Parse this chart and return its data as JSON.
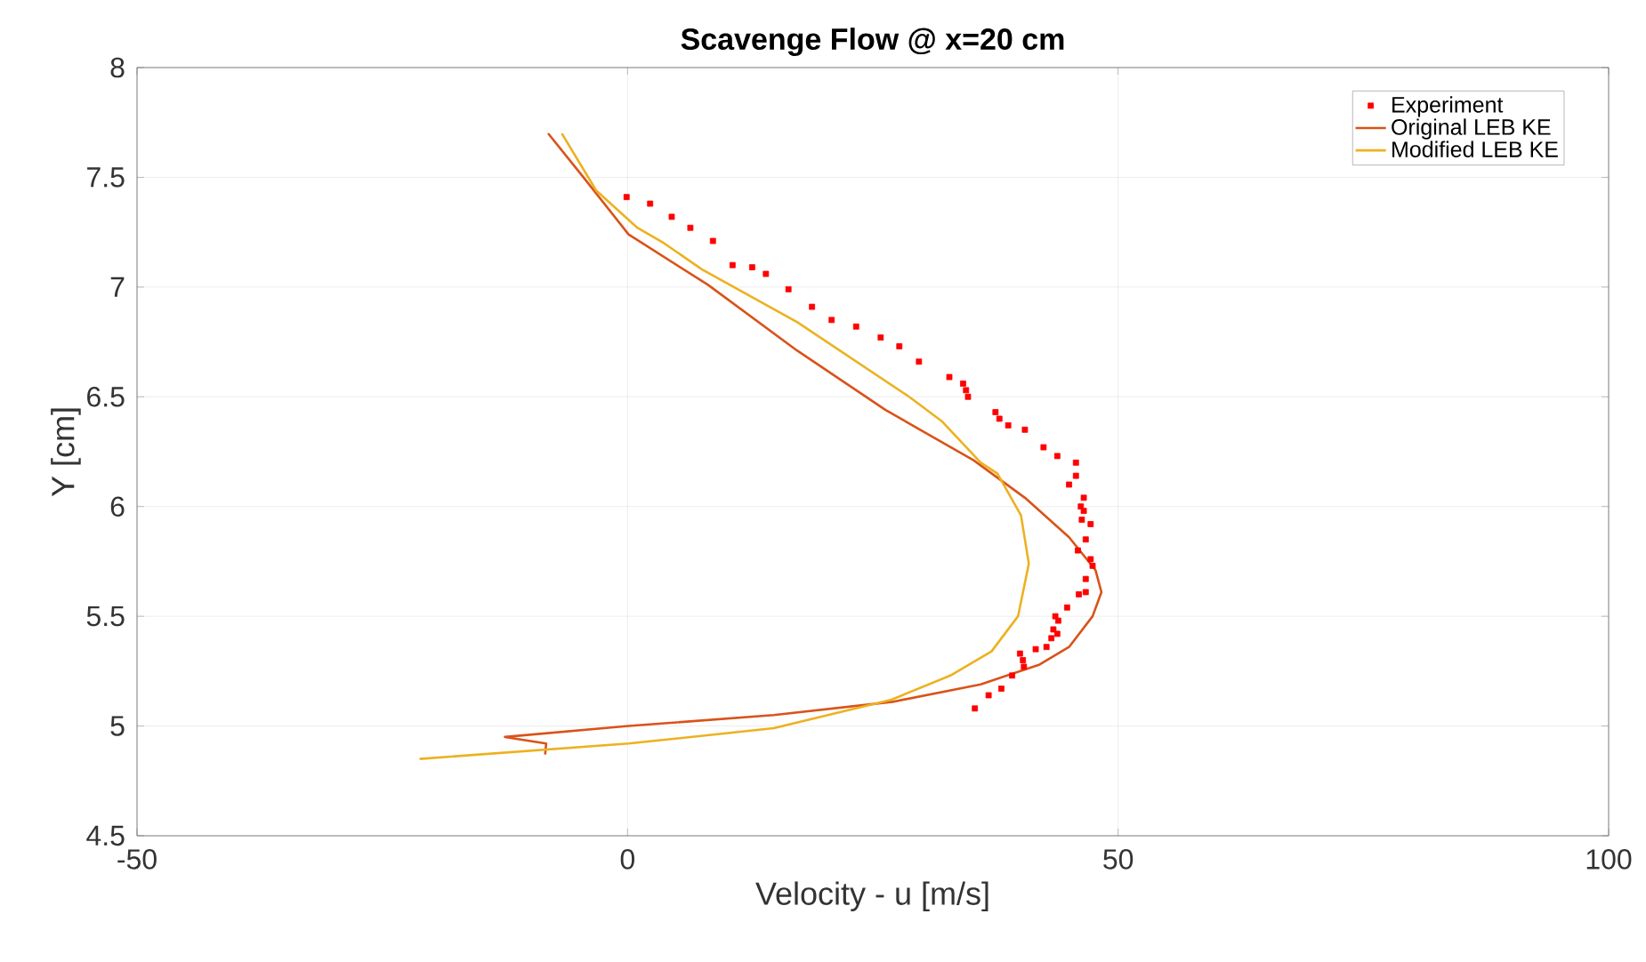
{
  "chart_data": {
    "type": "line",
    "title": "Scavenge Flow @ x=20 cm",
    "xlabel": "Velocity - u [m/s]",
    "ylabel": "Y [cm]",
    "xlim": [
      -50,
      100
    ],
    "xticks": [
      -50,
      0,
      50,
      100
    ],
    "ylim": [
      4.5,
      8
    ],
    "yticks": [
      4.5,
      5,
      5.5,
      6,
      6.5,
      7,
      7.5,
      8
    ],
    "grid": true,
    "legend": "top right",
    "series": [
      {
        "name": "Experiment",
        "type": "scatter",
        "marker": "square",
        "color": "#ff0000",
        "x": [
          -0.1,
          2.3,
          4.5,
          6.4,
          8.7,
          10.7,
          12.7,
          14.1,
          16.4,
          18.8,
          20.8,
          23.3,
          25.8,
          27.7,
          29.7,
          32.8,
          34.2,
          34.5,
          34.7,
          37.5,
          37.9,
          38.8,
          40.5,
          42.4,
          43.8,
          45.7,
          45.7,
          45.0,
          46.5,
          46.2,
          46.5,
          46.3,
          47.2,
          46.7,
          45.9,
          47.2,
          47.4,
          46.7,
          46.7,
          46.0,
          44.8,
          43.6,
          43.9,
          43.4,
          43.8,
          43.2,
          42.7,
          41.6,
          40.0,
          40.3,
          40.4,
          39.2,
          38.1,
          36.8,
          35.4
        ],
        "values": [
          7.41,
          7.38,
          7.32,
          7.27,
          7.21,
          7.1,
          7.09,
          7.06,
          6.99,
          6.91,
          6.85,
          6.82,
          6.77,
          6.73,
          6.66,
          6.59,
          6.56,
          6.53,
          6.5,
          6.43,
          6.4,
          6.37,
          6.35,
          6.27,
          6.23,
          6.2,
          6.14,
          6.1,
          6.04,
          6.0,
          5.98,
          5.94,
          5.92,
          5.85,
          5.8,
          5.76,
          5.73,
          5.67,
          5.61,
          5.6,
          5.54,
          5.5,
          5.48,
          5.44,
          5.42,
          5.4,
          5.36,
          5.35,
          5.33,
          5.3,
          5.27,
          5.23,
          5.17,
          5.14,
          5.08
        ]
      },
      {
        "name": "Original LEB KE",
        "color": "#d95319",
        "x": [
          -8.1,
          -4.5,
          0.1,
          8.2,
          17.3,
          26.3,
          35.3,
          40.5,
          45.0,
          47.7,
          48.3,
          47.4,
          45.0,
          42.0,
          36.0,
          27.0,
          14.9,
          0.1,
          -12.5,
          -8.3,
          -8.4
        ],
        "values": [
          7.7,
          7.5,
          7.24,
          7.01,
          6.71,
          6.44,
          6.21,
          6.04,
          5.86,
          5.71,
          5.61,
          5.5,
          5.36,
          5.28,
          5.19,
          5.11,
          5.05,
          5.0,
          4.95,
          4.92,
          4.87
        ]
      },
      {
        "name": "Modified LEB KE",
        "color": "#edb120",
        "x": [
          -6.7,
          -3.2,
          1.0,
          3.7,
          7.6,
          17.3,
          28.7,
          32.0,
          36.0,
          37.7,
          40.1,
          40.9,
          39.8,
          37.1,
          32.9,
          26.9,
          14.9,
          0.1,
          -21.2
        ],
        "values": [
          7.7,
          7.44,
          7.27,
          7.2,
          7.08,
          6.84,
          6.5,
          6.39,
          6.2,
          6.15,
          5.96,
          5.74,
          5.5,
          5.34,
          5.23,
          5.12,
          4.99,
          4.92,
          4.85
        ]
      }
    ]
  }
}
